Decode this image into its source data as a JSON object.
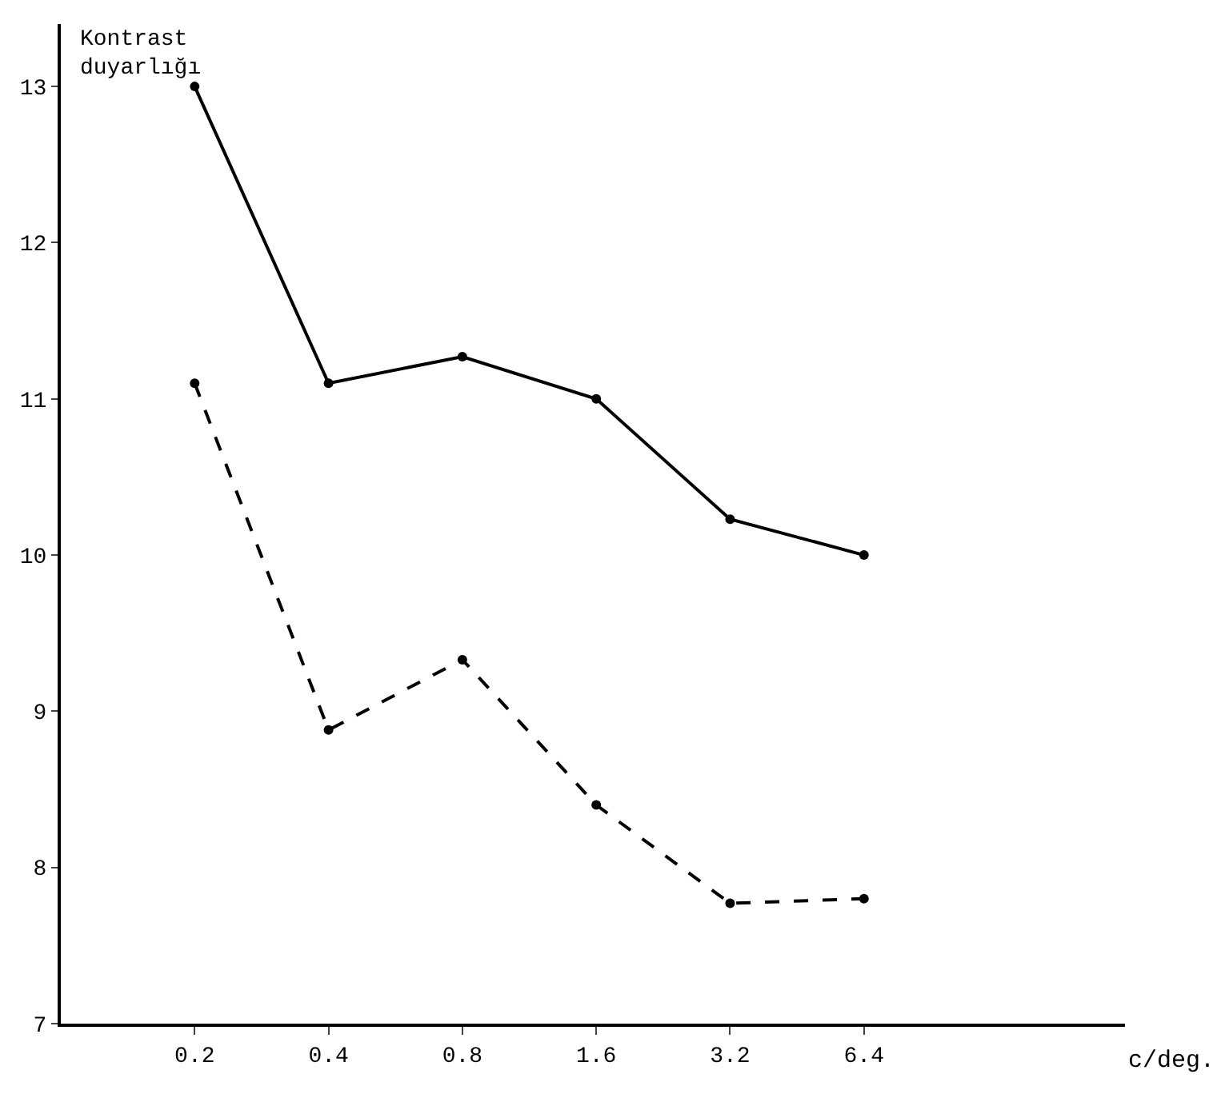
{
  "chart_data": {
    "type": "line",
    "annotations": [
      "c/deg."
    ],
    "ylabel": "Kontrast\nduyarlığı",
    "categories": [
      "0.2",
      "0.4",
      "0.8",
      "1.6",
      "3.2",
      "6.4"
    ],
    "series": [
      {
        "color": "#000000",
        "line_style": "solid",
        "values": [
          13.0,
          11.1,
          11.27,
          11.0,
          10.23,
          10.0
        ]
      },
      {
        "color": "#000000",
        "line_style": "dashed",
        "values": [
          11.1,
          8.88,
          9.33,
          8.4,
          7.77,
          7.8
        ]
      }
    ],
    "ylim": [
      7,
      13.4
    ],
    "yticks": [
      7,
      8,
      9,
      10,
      11,
      12,
      13
    ],
    "marker": "circle"
  }
}
